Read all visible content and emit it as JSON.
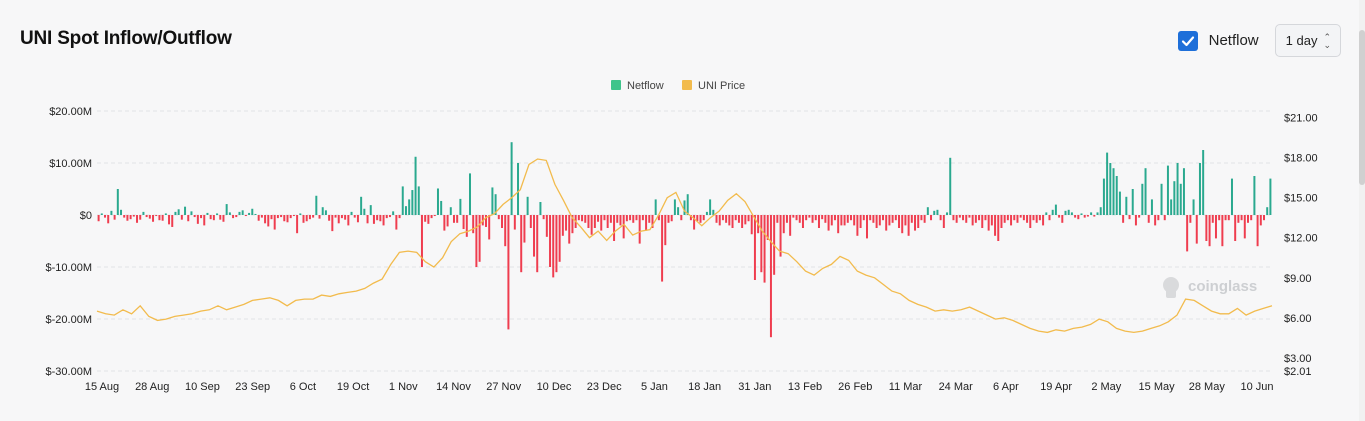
{
  "title": "UNI Spot Inflow/Outflow",
  "controls": {
    "checkbox_label": "Netflow",
    "interval": "1 day"
  },
  "watermark": "coinglass",
  "colors": {
    "inflow": "#2aa98f",
    "outflow": "#ef3d4f",
    "price": "#f2bb4d",
    "checkbox": "#1e6fd9"
  },
  "chart_data": {
    "type": "bar",
    "legend": [
      {
        "name": "Netflow",
        "color": "#3ec48b"
      },
      {
        "name": "UNI Price",
        "color": "#f2bb4d"
      }
    ],
    "legend_position": "top-center",
    "y_left_ticks": [
      "$20.00M",
      "$10.00M",
      "$0",
      "$-10.00M",
      "$-20.00M",
      "$-30.00M"
    ],
    "y_right_ticks": [
      "$21.00",
      "$18.00",
      "$15.00",
      "$12.00",
      "$9.00",
      "$6.00",
      "$3.00",
      "$2.01"
    ],
    "y_left_range": [
      -30,
      20
    ],
    "y_right_range": [
      2.01,
      21.5
    ],
    "x_labels": [
      "15 Aug",
      "28 Aug",
      "10 Sep",
      "23 Sep",
      "6 Oct",
      "19 Oct",
      "1 Nov",
      "14 Nov",
      "27 Nov",
      "10 Dec",
      "23 Dec",
      "5 Jan",
      "18 Jan",
      "31 Jan",
      "13 Feb",
      "26 Feb",
      "11 Mar",
      "24 Mar",
      "6 Apr",
      "19 Apr",
      "2 May",
      "15 May",
      "28 May",
      "10 Jun"
    ],
    "grid": true,
    "netflow_unit": "$M",
    "series": [
      {
        "name": "Netflow",
        "values": [
          -1.2,
          0.3,
          -0.5,
          -1.6,
          0.8,
          -0.9,
          5.0,
          1.0,
          -0.5,
          -1.1,
          -0.8,
          -0.3,
          -1.5,
          -0.9,
          0.6,
          -0.4,
          -0.7,
          -1.3,
          -0.2,
          -1.0,
          -1.1,
          0.3,
          -1.8,
          -2.3,
          0.6,
          1.1,
          -0.9,
          1.6,
          -1.2,
          0.7,
          -0.4,
          -1.7,
          -0.6,
          -2.0,
          0.4,
          -0.8,
          -1.0,
          0.3,
          -0.9,
          -1.3,
          2.1,
          0.5,
          -0.6,
          -0.4,
          0.6,
          0.9,
          -0.2,
          0.4,
          1.2,
          0.2,
          -1.1,
          -0.5,
          -1.6,
          -2.2,
          -0.8,
          -2.8,
          -0.6,
          -0.4,
          -1.2,
          -1.4,
          -0.6,
          -0.2,
          -3.5,
          0.3,
          -1.5,
          -1.2,
          -0.8,
          -0.5,
          3.7,
          -0.7,
          1.5,
          0.9,
          -1.1,
          -3.1,
          -0.5,
          -1.6,
          -0.6,
          -0.9,
          -2.0,
          0.6,
          -0.5,
          -1.4,
          3.5,
          1.2,
          -1.6,
          1.9,
          -1.7,
          -1.0,
          -1.2,
          -2.0,
          -0.6,
          -0.4,
          0.7,
          -2.8,
          -0.6,
          5.5,
          1.7,
          3.0,
          4.8,
          11.2,
          5.5,
          -10.0,
          -1.3,
          -1.7,
          -0.6,
          -0.2,
          5.1,
          2.7,
          -3.0,
          -2.2,
          1.5,
          -1.5,
          -1.5,
          3.1,
          -2.7,
          -4.2,
          8.0,
          -3.5,
          -10.0,
          -9.0,
          -2.0,
          -2.3,
          -4.7,
          5.3,
          4.0,
          -0.8,
          -2.5,
          -6.0,
          -22.0,
          14.0,
          -2.8,
          10.0,
          -11.0,
          -5.3,
          3.5,
          -2.5,
          -8.0,
          -11.0,
          2.5,
          -0.8,
          -4.2,
          -10.0,
          -12.0,
          -11.0,
          -9.0,
          -4.0,
          -3.0,
          -5.5,
          -3.5,
          -2.5,
          -1.0,
          -1.2,
          -1.5,
          -2.5,
          -3.8,
          -2.5,
          -1.3,
          -3.0,
          -1.0,
          -2.5,
          -1.5,
          -5.0,
          -1.5,
          -2.0,
          -4.5,
          -1.2,
          -1.0,
          -1.5,
          -1.0,
          -5.5,
          -1.0,
          -3.0,
          -1.5,
          -2.5,
          3.0,
          -1.0,
          -12.8,
          -5.8,
          -1.5,
          -1.2,
          3.0,
          1.5,
          -1.0,
          2.8,
          4.0,
          -1.0,
          -2.8,
          -1.2,
          -1.5,
          -1.0,
          0.6,
          3.0,
          1.0,
          -1.5,
          -2.0,
          -1.0,
          -1.5,
          -2.0,
          -2.5,
          -1.0,
          -1.5,
          -2.5,
          -1.8,
          -1.2,
          -3.7,
          -12.5,
          -3.5,
          -11.0,
          -13.0,
          -4.8,
          -23.5,
          -11.5,
          -1.5,
          -8.0,
          -3.5,
          -1.5,
          -4.0,
          -0.5,
          -1.0,
          -1.5,
          -2.5,
          -1.0,
          -0.5,
          -1.5,
          -1.0,
          -2.5,
          -0.8,
          -1.5,
          -3.0,
          -2.0,
          -1.0,
          -3.5,
          -2.0,
          -2.0,
          -1.5,
          -1.0,
          -2.0,
          -4.0,
          -2.5,
          -1.0,
          -4.5,
          -1.0,
          -1.5,
          -2.5,
          -2.0,
          -1.0,
          -3.0,
          -2.0,
          -1.5,
          -1.0,
          -2.5,
          -3.5,
          -2.0,
          -4.0,
          -1.5,
          -3.0,
          -2.5,
          -1.0,
          -1.5,
          1.5,
          -1.0,
          0.8,
          1.0,
          -1.0,
          -2.5,
          0.5,
          11.0,
          -1.0,
          -1.5,
          -0.5,
          -1.0,
          -1.5,
          -0.5,
          -2.0,
          -1.5,
          -1.0,
          -2.5,
          -1.0,
          -3.0,
          -2.0,
          -4.0,
          -5.0,
          -2.5,
          -1.5,
          -1.0,
          -2.0,
          -1.0,
          -1.5,
          -0.5,
          -1.0,
          -1.5,
          -2.5,
          -1.0,
          -1.5,
          -1.0,
          -2.0,
          0.5,
          -1.0,
          1.0,
          2.0,
          -0.5,
          -1.5,
          0.8,
          1.0,
          0.5,
          -0.5,
          -0.8,
          0.3,
          -0.5,
          -0.3,
          0.5,
          -0.3,
          0.5,
          1.5,
          7.0,
          12.0,
          10.0,
          9.0,
          7.5,
          4.5,
          -1.5,
          3.5,
          -0.8,
          5.0,
          -2.0,
          -0.5,
          6.0,
          9.0,
          -1.5,
          3.0,
          -2.0,
          -1.0,
          6.0,
          -1.0,
          9.5,
          3.0,
          6.5,
          10.0,
          6.0,
          9.0,
          -7.0,
          -1.5,
          3.0,
          -5.5,
          10.0,
          12.5,
          -5.0,
          -6.0,
          -1.5,
          -4.5,
          -1.0,
          -6.0,
          -1.0,
          -1.0,
          7.0,
          -5.0,
          -1.5,
          -1.0,
          -4.5,
          -1.5,
          -1.0,
          7.5,
          -6.0,
          -2.0,
          -1.0,
          1.5,
          7.0
        ]
      },
      {
        "name": "UNI Price",
        "values": [
          6.5,
          6.3,
          6.2,
          6.6,
          6.3,
          6.9,
          6.1,
          5.8,
          5.9,
          6.1,
          6.2,
          6.3,
          6.5,
          6.6,
          6.9,
          6.6,
          6.8,
          7.0,
          7.3,
          7.4,
          7.5,
          7.3,
          6.9,
          7.3,
          7.4,
          7.4,
          7.7,
          7.6,
          7.8,
          7.9,
          8.0,
          8.2,
          8.6,
          8.9,
          10.0,
          10.9,
          11.0,
          10.9,
          10.2,
          9.8,
          10.5,
          11.7,
          12.3,
          12.5,
          12.8,
          13.5,
          13.8,
          14.5,
          15.0,
          15.6,
          17.5,
          17.9,
          17.8,
          16.0,
          14.8,
          13.5,
          12.8,
          12.0,
          12.5,
          11.8,
          12.5,
          13.0,
          12.2,
          12.5,
          12.6,
          13.7,
          15.0,
          15.4,
          14.0,
          13.5,
          12.9,
          13.5,
          14.0,
          14.8,
          15.3,
          14.7,
          13.6,
          12.5,
          11.7,
          11.0,
          10.8,
          10.2,
          9.5,
          9.2,
          9.7,
          10.0,
          10.6,
          10.3,
          9.5,
          9.2,
          9.0,
          8.5,
          8.0,
          7.8,
          7.3,
          7.0,
          6.8,
          6.5,
          6.6,
          6.5,
          6.6,
          6.8,
          6.5,
          6.2,
          5.9,
          6.0,
          5.8,
          5.5,
          5.2,
          5.0,
          4.9,
          5.1,
          5.0,
          5.2,
          5.3,
          5.5,
          5.9,
          5.7,
          5.2,
          5.0,
          4.9,
          5.0,
          5.2,
          5.4,
          5.7,
          6.2,
          7.4,
          7.3,
          6.9,
          6.5,
          6.3,
          6.3,
          6.7,
          6.2,
          6.5,
          6.7,
          6.9
        ]
      }
    ]
  }
}
